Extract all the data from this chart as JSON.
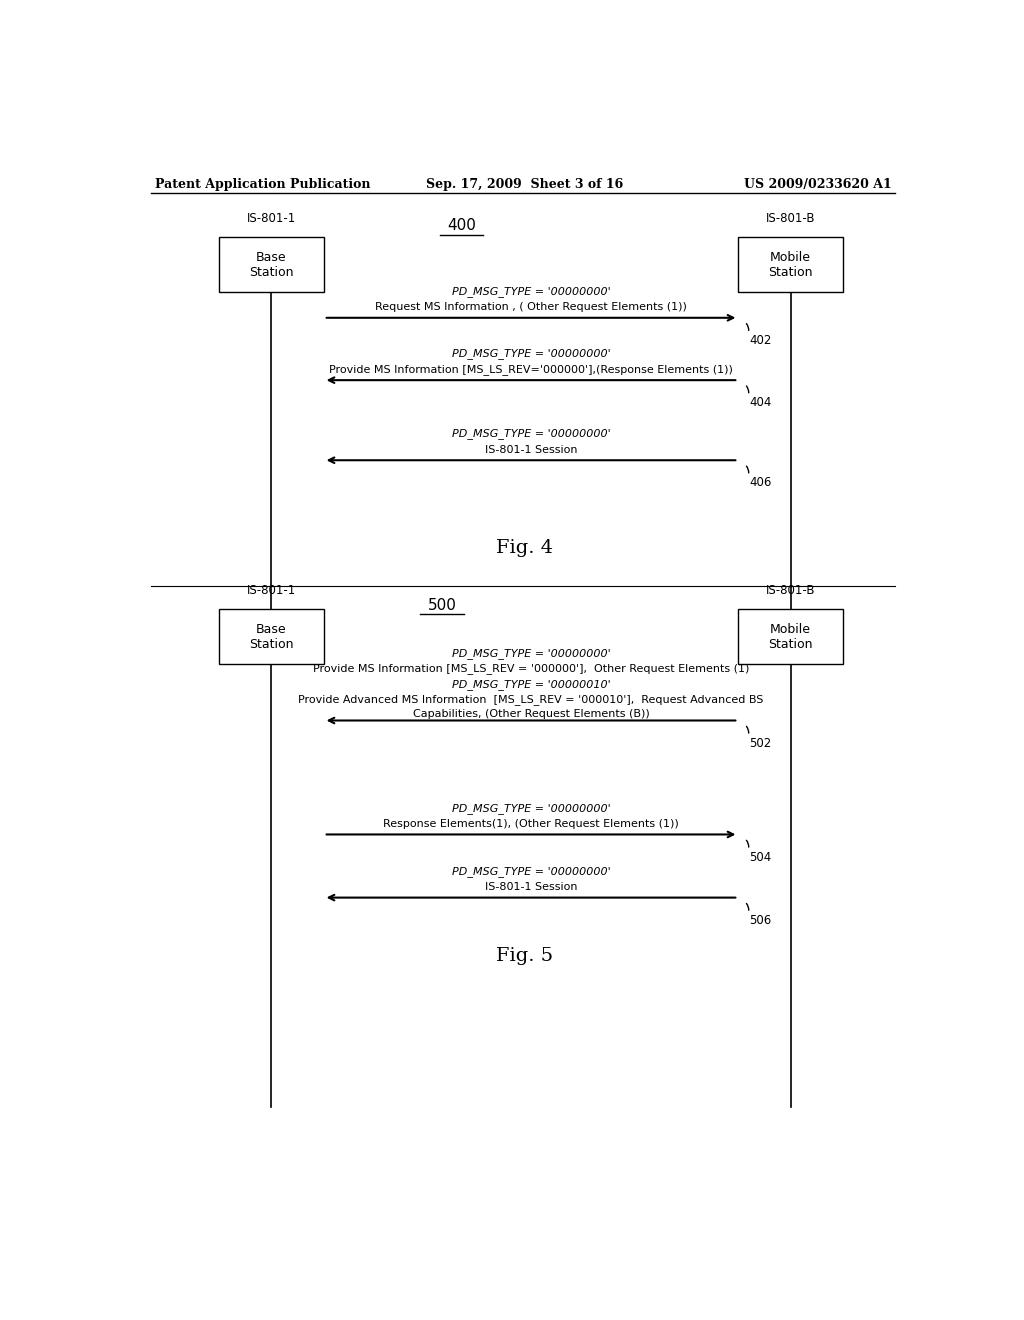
{
  "header_left": "Patent Application Publication",
  "header_mid": "Sep. 17, 2009  Sheet 3 of 16",
  "header_right": "US 2009/0233620 A1",
  "fig4": {
    "label": "400",
    "fig_label": "Fig. 4",
    "bs_label": "IS-801-1",
    "bs_box": "Base\nStation",
    "ms_label": "IS-801-B",
    "ms_box": "Mobile\nStation"
  },
  "fig5": {
    "label": "500",
    "fig_label": "Fig. 5",
    "bs_label": "IS-801-1",
    "bs_box": "Base\nStation",
    "ms_label": "IS-801-B",
    "ms_box": "Mobile\nStation"
  }
}
